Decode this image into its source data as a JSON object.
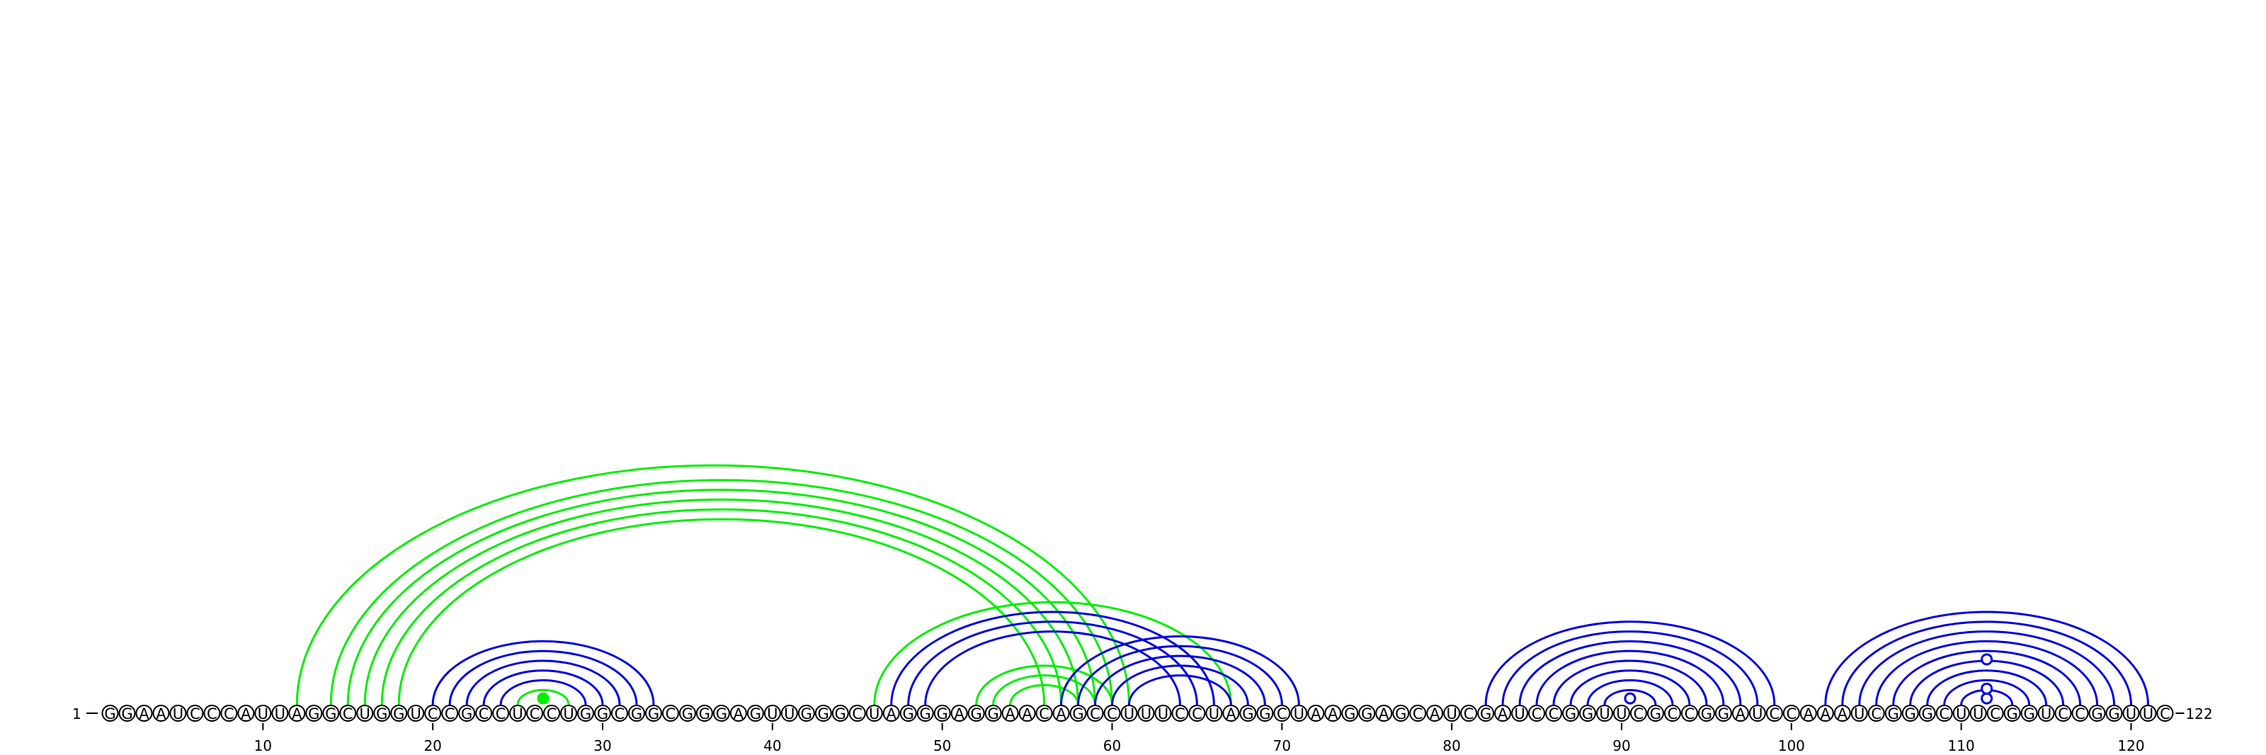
{
  "chart_data": {
    "type": "arc_diagram",
    "sequence": "GGAAUCCCAUUAGGCUGGUCCGCCUCCUGGCGGCGGGAGUUGGGCUAGGGAGGAACAGCCUUUCCUAGGCUAAGGAGCAUCGAUCCGGUUCGCCGGAUCCAAAUCGGGCUUCGGUCCGGUUC",
    "start_label": "1",
    "end_label": "122",
    "tick_positions": [
      10,
      20,
      30,
      40,
      50,
      60,
      70,
      80,
      90,
      100,
      110,
      120
    ],
    "tick_labels": [
      "10",
      "20",
      "30",
      "40",
      "50",
      "60",
      "70",
      "80",
      "90",
      "100",
      "110",
      "120"
    ],
    "colors": {
      "blue": "#0000dd",
      "green": "#00ee00"
    },
    "arcs": [
      {
        "i": 20,
        "j": 33,
        "color": "blue"
      },
      {
        "i": 21,
        "j": 32,
        "color": "blue"
      },
      {
        "i": 22,
        "j": 31,
        "color": "blue"
      },
      {
        "i": 23,
        "j": 30,
        "color": "blue"
      },
      {
        "i": 24,
        "j": 29,
        "color": "blue"
      },
      {
        "i": 25,
        "j": 28,
        "color": "green"
      },
      {
        "i": 12,
        "j": 61,
        "color": "green"
      },
      {
        "i": 14,
        "j": 60,
        "color": "green"
      },
      {
        "i": 15,
        "j": 59,
        "color": "green"
      },
      {
        "i": 16,
        "j": 58,
        "color": "green"
      },
      {
        "i": 17,
        "j": 57,
        "color": "green"
      },
      {
        "i": 18,
        "j": 56,
        "color": "green"
      },
      {
        "i": 46,
        "j": 67,
        "color": "green"
      },
      {
        "i": 47,
        "j": 66,
        "color": "blue"
      },
      {
        "i": 48,
        "j": 65,
        "color": "blue"
      },
      {
        "i": 49,
        "j": 64,
        "color": "blue"
      },
      {
        "i": 52,
        "j": 60,
        "color": "green"
      },
      {
        "i": 53,
        "j": 59,
        "color": "green"
      },
      {
        "i": 54,
        "j": 58,
        "color": "green"
      },
      {
        "i": 57,
        "j": 71,
        "color": "blue"
      },
      {
        "i": 58,
        "j": 70,
        "color": "blue"
      },
      {
        "i": 59,
        "j": 69,
        "color": "blue"
      },
      {
        "i": 60,
        "j": 68,
        "color": "blue"
      },
      {
        "i": 61,
        "j": 67,
        "color": "blue"
      },
      {
        "i": 82,
        "j": 99,
        "color": "blue"
      },
      {
        "i": 83,
        "j": 98,
        "color": "blue"
      },
      {
        "i": 84,
        "j": 97,
        "color": "blue"
      },
      {
        "i": 85,
        "j": 96,
        "color": "blue"
      },
      {
        "i": 86,
        "j": 95,
        "color": "blue"
      },
      {
        "i": 87,
        "j": 94,
        "color": "blue"
      },
      {
        "i": 88,
        "j": 93,
        "color": "blue"
      },
      {
        "i": 89,
        "j": 92,
        "color": "blue"
      },
      {
        "i": 102,
        "j": 121,
        "color": "blue"
      },
      {
        "i": 103,
        "j": 120,
        "color": "blue"
      },
      {
        "i": 104,
        "j": 119,
        "color": "blue"
      },
      {
        "i": 105,
        "j": 118,
        "color": "blue"
      },
      {
        "i": 106,
        "j": 117,
        "color": "blue"
      },
      {
        "i": 107,
        "j": 116,
        "color": "blue"
      },
      {
        "i": 108,
        "j": 115,
        "color": "blue"
      },
      {
        "i": 109,
        "j": 114,
        "color": "blue"
      },
      {
        "i": 110,
        "j": 113,
        "color": "blue"
      }
    ],
    "markers": [
      {
        "i": 26.5,
        "h": 0.5,
        "color": "green",
        "filled": true
      },
      {
        "i": 90.5,
        "h": 0.5,
        "color": "blue",
        "filled": false
      },
      {
        "i": 111.5,
        "h": 0.5,
        "color": "blue",
        "filled": false
      },
      {
        "i": 111.5,
        "h": 1.5,
        "color": "blue",
        "filled": false
      },
      {
        "i": 111.5,
        "h": 4.5,
        "color": "blue",
        "filled": false
      }
    ]
  }
}
